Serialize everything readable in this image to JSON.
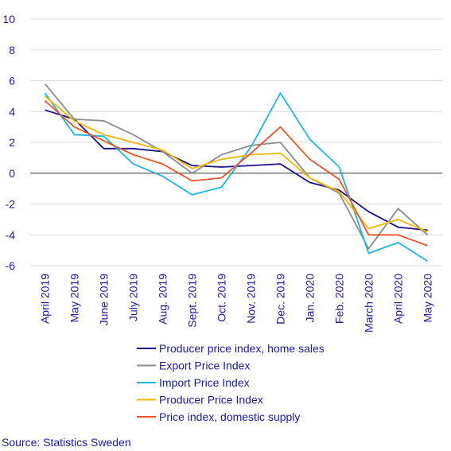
{
  "chart_data": {
    "type": "line",
    "title": "",
    "xlabel": "",
    "ylabel": "",
    "categories": [
      "April 2019",
      "May 2019",
      "June 2019",
      "July 2019",
      "Aug. 2019",
      "Sept. 2019",
      "Oct. 2019",
      "Nov. 2019",
      "Dec. 2019",
      "Jan. 2020",
      "Feb. 2020",
      "March 2020",
      "April 2020",
      "May 2020"
    ],
    "ylim": [
      -6,
      10
    ],
    "yticks": [
      "10",
      "8",
      "6",
      "4",
      "2",
      "0",
      "-2",
      "-4",
      "-6"
    ],
    "grid": "horizontal",
    "legend_position": "bottom",
    "series": [
      {
        "name": "Producer price index, home sales",
        "color": "#1a0f8c",
        "values": [
          4.1,
          3.5,
          1.6,
          1.6,
          1.4,
          0.5,
          0.4,
          0.5,
          0.6,
          -0.6,
          -1.1,
          -2.5,
          -3.5,
          -3.7
        ]
      },
      {
        "name": "Export Price Index",
        "color": "#8c8c8c",
        "values": [
          5.8,
          3.5,
          3.4,
          2.5,
          1.4,
          0.0,
          1.2,
          1.8,
          2.0,
          -0.3,
          -1.3,
          -4.9,
          -2.3,
          -4.0
        ]
      },
      {
        "name": "Import Price Index",
        "color": "#1fb3e6",
        "values": [
          5.2,
          2.5,
          2.4,
          0.6,
          -0.2,
          -1.4,
          -0.9,
          1.7,
          5.2,
          2.2,
          0.4,
          -5.2,
          -4.5,
          -5.7
        ]
      },
      {
        "name": "Producer Price Index",
        "color": "#f2b600",
        "values": [
          5.0,
          3.4,
          2.5,
          2.0,
          1.5,
          0.3,
          0.9,
          1.2,
          1.3,
          -0.3,
          -1.2,
          -3.6,
          -3.0,
          -3.8
        ]
      },
      {
        "name": "Price index, domestic supply",
        "color": "#e8552a",
        "values": [
          4.7,
          3.0,
          2.1,
          1.2,
          0.6,
          -0.5,
          -0.3,
          1.3,
          3.0,
          0.9,
          -0.4,
          -4.0,
          -4.0,
          -4.7
        ]
      }
    ],
    "source": "Source: Statistics Sweden"
  },
  "colors": {
    "axis_text": "#1a1a9e",
    "grid": "#d9d9d9",
    "zero_line": "#333333"
  }
}
